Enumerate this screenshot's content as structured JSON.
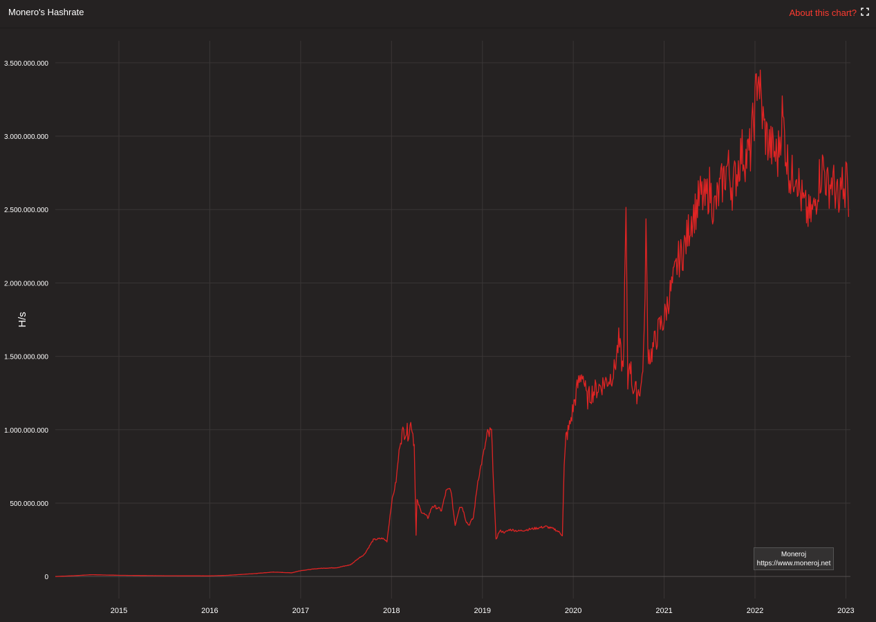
{
  "header": {
    "title": "Monero's Hashrate",
    "about_label": "About this chart?"
  },
  "watermark": {
    "name": "Moneroj",
    "url": "https://www.moneroj.net"
  },
  "colors": {
    "background": "#252222",
    "grid": "#3a3636",
    "line": "#e02424",
    "accent": "#ff3b30",
    "text": "#ffffff"
  },
  "icons": {
    "expand": "expand-icon"
  },
  "chart_data": {
    "type": "line",
    "title": "Monero's Hashrate",
    "xlabel": "",
    "ylabel": "H/s",
    "xlim": [
      2014.3,
      2023.05
    ],
    "ylim": [
      -150000000,
      3650000000
    ],
    "x_ticks": [
      2015,
      2016,
      2017,
      2018,
      2019,
      2020,
      2021,
      2022,
      2023
    ],
    "y_ticks": [
      0,
      500000000,
      1000000000,
      1500000000,
      2000000000,
      2500000000,
      3000000000,
      3500000000
    ],
    "y_tick_labels": [
      "0",
      "500.000.000",
      "1.000.000.000",
      "1.500.000.000",
      "2.000.000.000",
      "2.500.000.000",
      "3.000.000.000",
      "3.500.000.000"
    ],
    "grid": true,
    "legend": "none",
    "series": [
      {
        "x": [
          2014.3,
          2014.5,
          2014.7,
          2015.0,
          2015.5,
          2016.0,
          2016.2,
          2016.5,
          2016.7,
          2016.9,
          2017.0,
          2017.2,
          2017.4,
          2017.55,
          2017.65,
          2017.7,
          2017.8,
          2017.9,
          2017.95,
          2018.0,
          2018.05,
          2018.1,
          2018.15,
          2018.18,
          2018.22,
          2018.25,
          2018.27,
          2018.28,
          2018.32,
          2018.4,
          2018.45,
          2018.5,
          2018.55,
          2018.6,
          2018.65,
          2018.7,
          2018.75,
          2018.78,
          2018.82,
          2018.85,
          2018.9,
          2018.95,
          2019.0,
          2019.05,
          2019.1,
          2019.15,
          2019.18,
          2019.2,
          2019.25,
          2019.3,
          2019.4,
          2019.5,
          2019.6,
          2019.7,
          2019.8,
          2019.85,
          2019.88,
          2019.9,
          2019.92,
          2019.95,
          2020.0,
          2020.05,
          2020.1,
          2020.15,
          2020.2,
          2020.3,
          2020.4,
          2020.45,
          2020.5,
          2020.55,
          2020.58,
          2020.6,
          2020.62,
          2020.65,
          2020.7,
          2020.75,
          2020.78,
          2020.8,
          2020.82,
          2020.85,
          2020.9,
          2020.95,
          2021.0,
          2021.05,
          2021.1,
          2021.15,
          2021.2,
          2021.25,
          2021.3,
          2021.35,
          2021.4,
          2021.45,
          2021.5,
          2021.55,
          2021.6,
          2021.65,
          2021.7,
          2021.75,
          2021.8,
          2021.85,
          2021.9,
          2021.95,
          2022.0,
          2022.03,
          2022.05,
          2022.08,
          2022.1,
          2022.15,
          2022.2,
          2022.25,
          2022.3,
          2022.35,
          2022.4,
          2022.45,
          2022.5,
          2022.55,
          2022.6,
          2022.65,
          2022.7,
          2022.75,
          2022.8,
          2022.85,
          2022.9,
          2022.93,
          2022.95,
          2022.97,
          2022.99,
          2023.01,
          2023.03
        ],
        "y": [
          0,
          5000000,
          12000000,
          8000000,
          5000000,
          4000000,
          8000000,
          20000000,
          30000000,
          25000000,
          40000000,
          55000000,
          60000000,
          80000000,
          130000000,
          150000000,
          250000000,
          260000000,
          240000000,
          500000000,
          650000000,
          950000000,
          1000000000,
          980000000,
          1050000000,
          900000000,
          280000000,
          520000000,
          450000000,
          400000000,
          480000000,
          470000000,
          450000000,
          580000000,
          600000000,
          350000000,
          480000000,
          470000000,
          380000000,
          350000000,
          400000000,
          650000000,
          800000000,
          950000000,
          980000000,
          250000000,
          300000000,
          310000000,
          300000000,
          320000000,
          310000000,
          320000000,
          330000000,
          340000000,
          320000000,
          300000000,
          280000000,
          750000000,
          950000000,
          1000000000,
          1150000000,
          1300000000,
          1400000000,
          1200000000,
          1250000000,
          1300000000,
          1350000000,
          1400000000,
          1600000000,
          1400000000,
          2450000000,
          1300000000,
          1500000000,
          1300000000,
          1250000000,
          1300000000,
          1600000000,
          2400000000,
          1550000000,
          1500000000,
          1600000000,
          1700000000,
          1750000000,
          1900000000,
          2000000000,
          2150000000,
          2200000000,
          2300000000,
          2450000000,
          2500000000,
          2600000000,
          2550000000,
          2650000000,
          2500000000,
          2600000000,
          2700000000,
          2800000000,
          2650000000,
          2750000000,
          2900000000,
          2850000000,
          2900000000,
          3200000000,
          3450000000,
          3350000000,
          3150000000,
          3050000000,
          2950000000,
          2900000000,
          2850000000,
          3150000000,
          2850000000,
          2700000000,
          2800000000,
          2600000000,
          2500000000,
          2450000000,
          2500000000,
          2700000000,
          2800000000,
          2650000000,
          2700000000,
          2600000000,
          2450000000,
          2800000000,
          2600000000,
          2500000000,
          2900000000,
          2450000000
        ]
      }
    ]
  }
}
